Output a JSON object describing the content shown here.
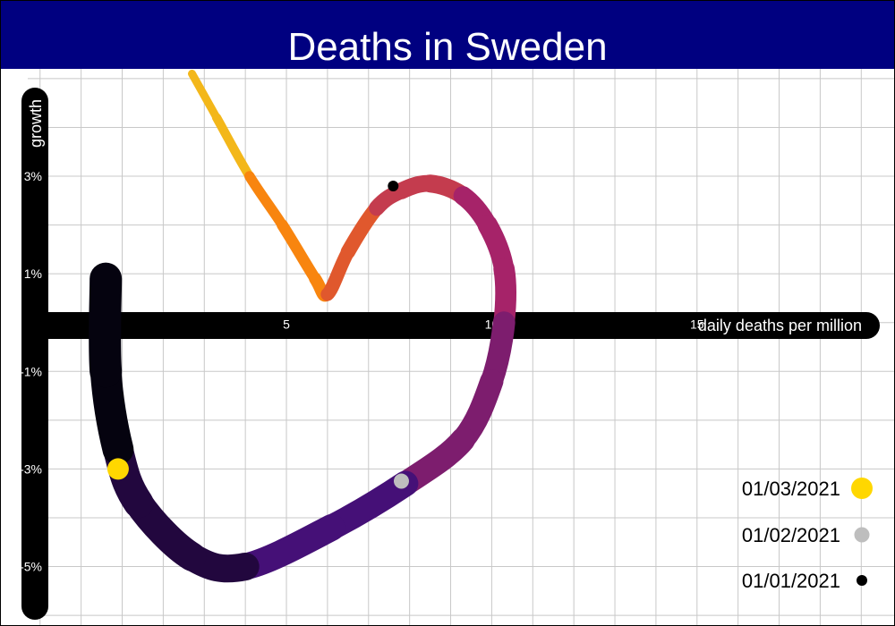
{
  "title": "Deaths in Sweden",
  "colors": {
    "title_bar": "#000080",
    "axis": "#000000",
    "grid": "#c8c8c8"
  },
  "chart_data": {
    "type": "line",
    "title": "Deaths in Sweden",
    "xlabel": "daily deaths per million",
    "ylabel": "growth",
    "xlim": [
      -1.3,
      19.8
    ],
    "ylim": [
      -6.2,
      5.2
    ],
    "x_ticks": [
      5,
      10,
      15
    ],
    "x_tick_labels": [
      "5",
      "10",
      "15"
    ],
    "y_ticks": [
      3,
      1,
      -1,
      -3,
      -5
    ],
    "y_tick_labels": [
      "3%",
      "1%",
      "-1%",
      "-3%",
      "-5%"
    ],
    "grid": true,
    "series": [
      {
        "points": [
          [
            2.7,
            5.1
          ],
          [
            3.3,
            4.2
          ],
          [
            4.1,
            3.0
          ],
          [
            4.9,
            2.0
          ],
          [
            5.7,
            0.9
          ],
          [
            6.0,
            0.58
          ],
          [
            6.5,
            1.45
          ],
          [
            7.2,
            2.35
          ],
          [
            7.8,
            2.7
          ],
          [
            8.5,
            2.85
          ],
          [
            9.3,
            2.6
          ],
          [
            9.9,
            2.0
          ],
          [
            10.3,
            1.1
          ],
          [
            10.3,
            0.0
          ],
          [
            10.0,
            -1.2
          ],
          [
            9.3,
            -2.4
          ],
          [
            7.9,
            -3.3
          ],
          [
            6.1,
            -4.2
          ],
          [
            4.0,
            -5.0
          ],
          [
            2.7,
            -4.8
          ],
          [
            1.4,
            -3.7
          ],
          [
            0.9,
            -2.6
          ],
          [
            0.6,
            -1.0
          ],
          [
            0.6,
            0.9
          ]
        ],
        "gradient": [
          "#f3b71a",
          "#f8850f",
          "#e0582d",
          "#c43c4e",
          "#a62369",
          "#7d1d6e",
          "#451077",
          "#22073e",
          "#05030f"
        ]
      }
    ],
    "markers": [
      {
        "label": "01/03/2021",
        "color": "#ffd700",
        "x": 0.9,
        "y": -3.0
      },
      {
        "label": "01/02/2021",
        "color": "#bebebe",
        "x": 7.8,
        "y": -3.25
      },
      {
        "label": "01/01/2021",
        "color": "#000000",
        "x": 7.6,
        "y": 2.8
      }
    ],
    "legend_position": "bottom-right"
  }
}
